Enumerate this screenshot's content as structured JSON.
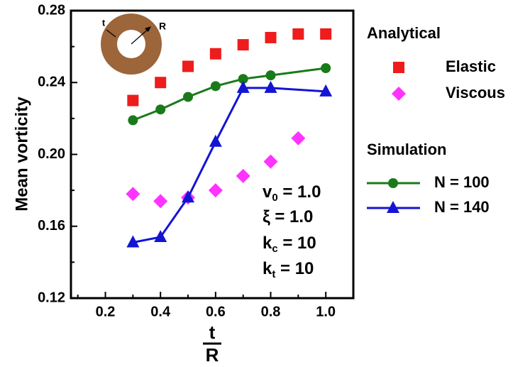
{
  "chart_data": {
    "type": "line",
    "ylabel": "Mean vorticity",
    "xlabel": {
      "numerator": "t",
      "denominator": "R"
    },
    "xlim": [
      0.075,
      1.1
    ],
    "xticks": [
      0.2,
      0.4,
      0.6,
      0.8,
      {
        "value": 1,
        "label": "1.0"
      }
    ],
    "xminorticks": [
      0.1,
      0.3,
      0.5,
      0.7,
      0.9
    ],
    "ylim": [
      0.12,
      0.28
    ],
    "yticks": [
      0.12,
      0.16,
      {
        "value": 0.2,
        "label": "0.20"
      },
      0.24,
      0.28
    ],
    "yminorticks": [
      0.14,
      0.18,
      0.22,
      0.26
    ],
    "legend_titles": [
      "Analytical",
      "Simulation"
    ],
    "series": [
      {
        "name": "Elastic",
        "color": "#ee1c1c",
        "marker": "square",
        "line": false,
        "x": [
          0.3,
          0.4,
          0.5,
          0.6,
          0.7,
          0.8,
          0.9,
          1.0
        ],
        "values": [
          0.23,
          0.24,
          0.249,
          0.256,
          0.261,
          0.265,
          0.267,
          0.267
        ]
      },
      {
        "name": "Viscous",
        "color": "#ff33ff",
        "marker": "diamond",
        "line": false,
        "x": [
          0.3,
          0.4,
          0.5,
          0.6,
          0.7,
          0.8,
          0.9
        ],
        "values": [
          0.178,
          0.174,
          0.176,
          0.18,
          0.188,
          0.196,
          0.209
        ]
      },
      {
        "name": "N = 100",
        "color": "#1a7a1a",
        "marker": "circle",
        "line": true,
        "x": [
          0.3,
          0.4,
          0.5,
          0.6,
          0.7,
          0.8,
          1.0
        ],
        "values": [
          0.219,
          0.225,
          0.232,
          0.238,
          0.242,
          0.244,
          0.248
        ]
      },
      {
        "name": "N = 140",
        "color": "#1414d4",
        "marker": "triangle",
        "line": true,
        "x": [
          0.3,
          0.4,
          0.5,
          0.6,
          0.7,
          0.8,
          1.0
        ],
        "values": [
          0.151,
          0.154,
          0.176,
          0.207,
          0.237,
          0.237,
          0.235
        ]
      }
    ],
    "annotations": [
      {
        "base": "v",
        "sub": "0",
        "rest": " = 1.0"
      },
      {
        "base": "ξ = 1.0"
      },
      {
        "base": "k",
        "sub": "c",
        "rest": " = 10"
      },
      {
        "base": "k",
        "sub": "t",
        "rest": " = 10"
      }
    ],
    "inset_labels": [
      "t",
      "R"
    ]
  }
}
